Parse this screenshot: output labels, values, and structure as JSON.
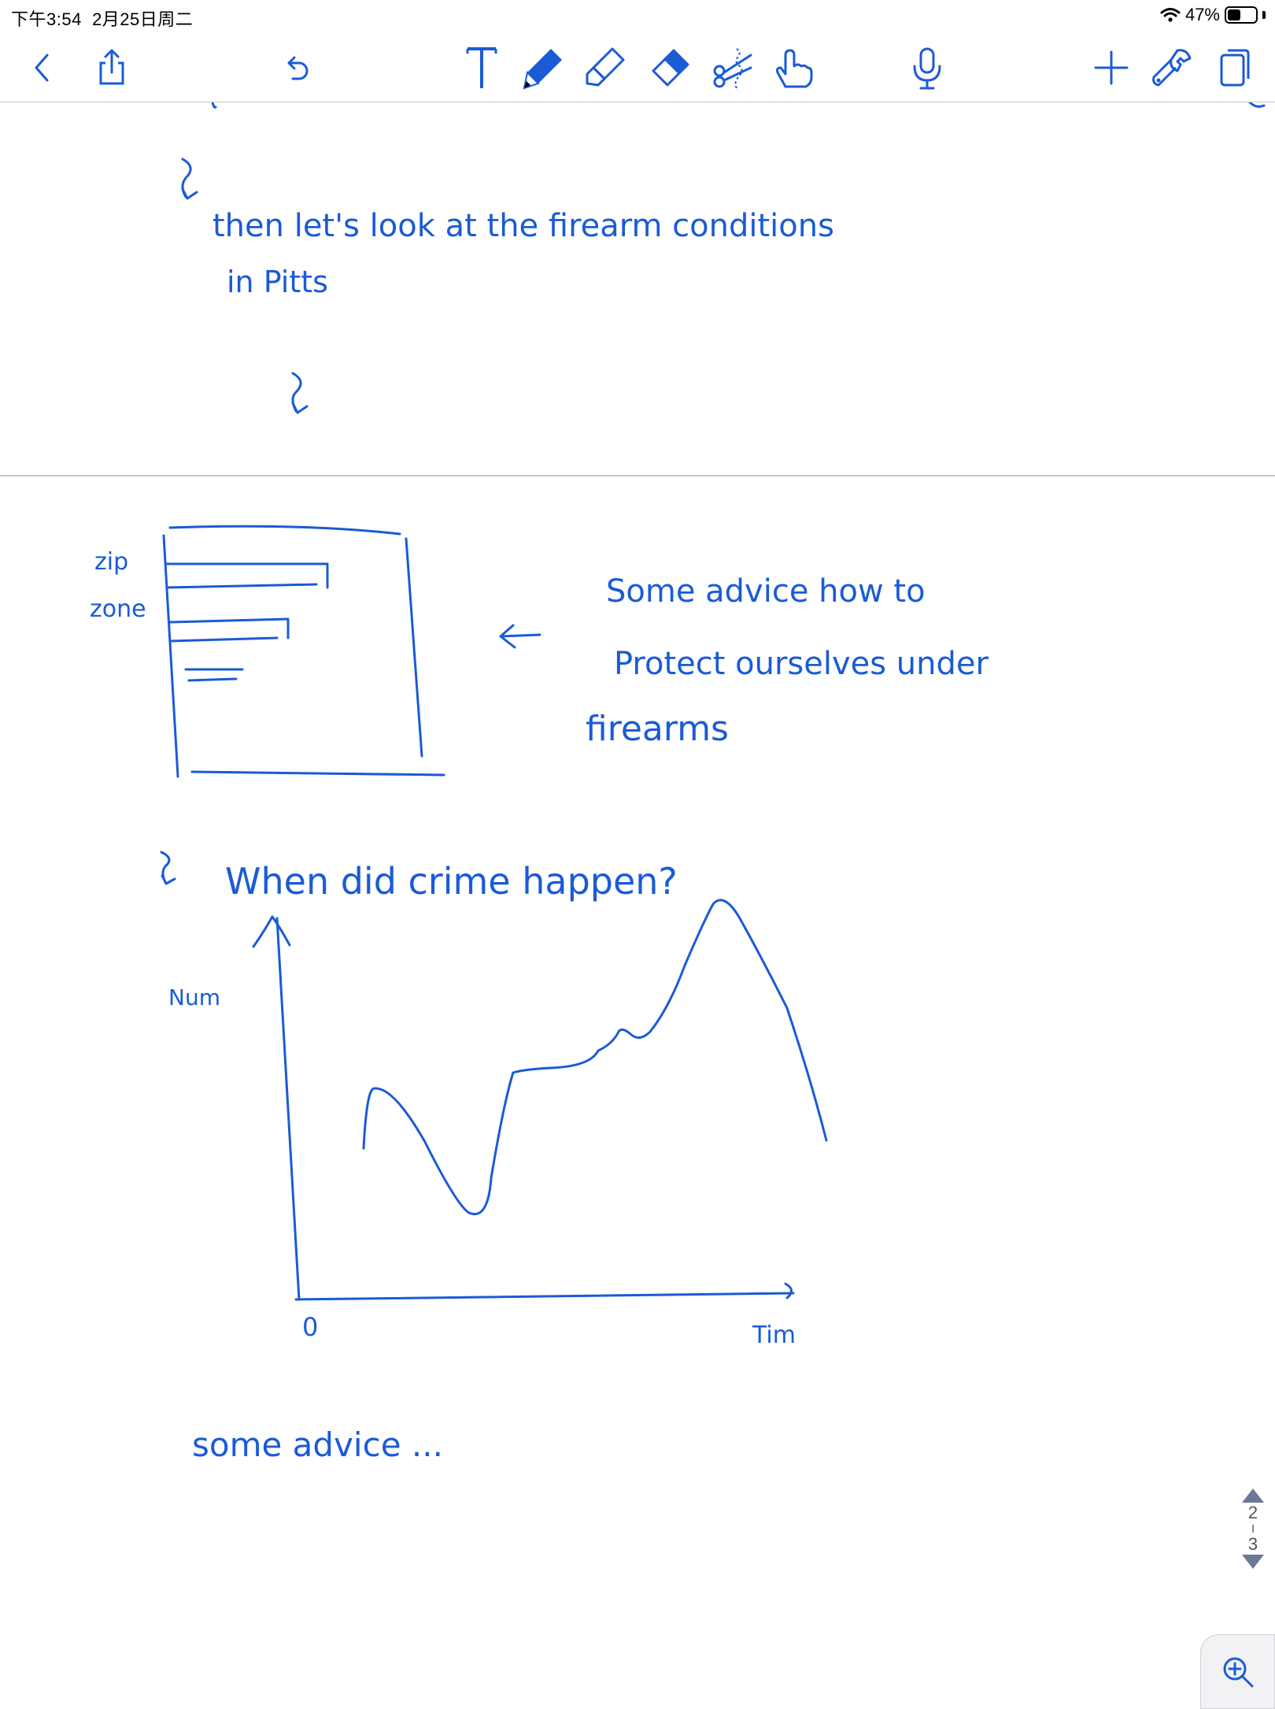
{
  "status_bar": {
    "time": "下午3:54",
    "date": "2月25日周二",
    "battery_text": "47%",
    "battery_level": 0.47
  },
  "toolbar": {
    "icons": [
      "chevron-left-icon",
      "share-icon",
      "undo-icon",
      "text-tool-icon",
      "pen-icon",
      "highlighter-icon",
      "eraser-icon",
      "lasso-scissors-icon",
      "touch-hand-icon",
      "microphone-icon",
      "plus-icon",
      "wrench-icon",
      "pages-icon"
    ],
    "ink_color": "#1a5bd6"
  },
  "notes": {
    "line1": "then let's look at the firearm conditions",
    "line2": "in Pitts",
    "zip_label": "zip",
    "zone_label": "zone",
    "advice1": "Some advice how to",
    "advice2": "Protect ourselves under",
    "advice3": "firearms",
    "question": "When did crime happen?",
    "y_label": "Num",
    "x_label": "Tim",
    "origin": "0",
    "closing": "some advice ..."
  },
  "page_indicator": {
    "current": "2",
    "total": "3"
  },
  "colors": {
    "ink": "#1a5bd6",
    "divider": "#b8c6d8",
    "toolbar_icon": "#1a5bd6"
  }
}
